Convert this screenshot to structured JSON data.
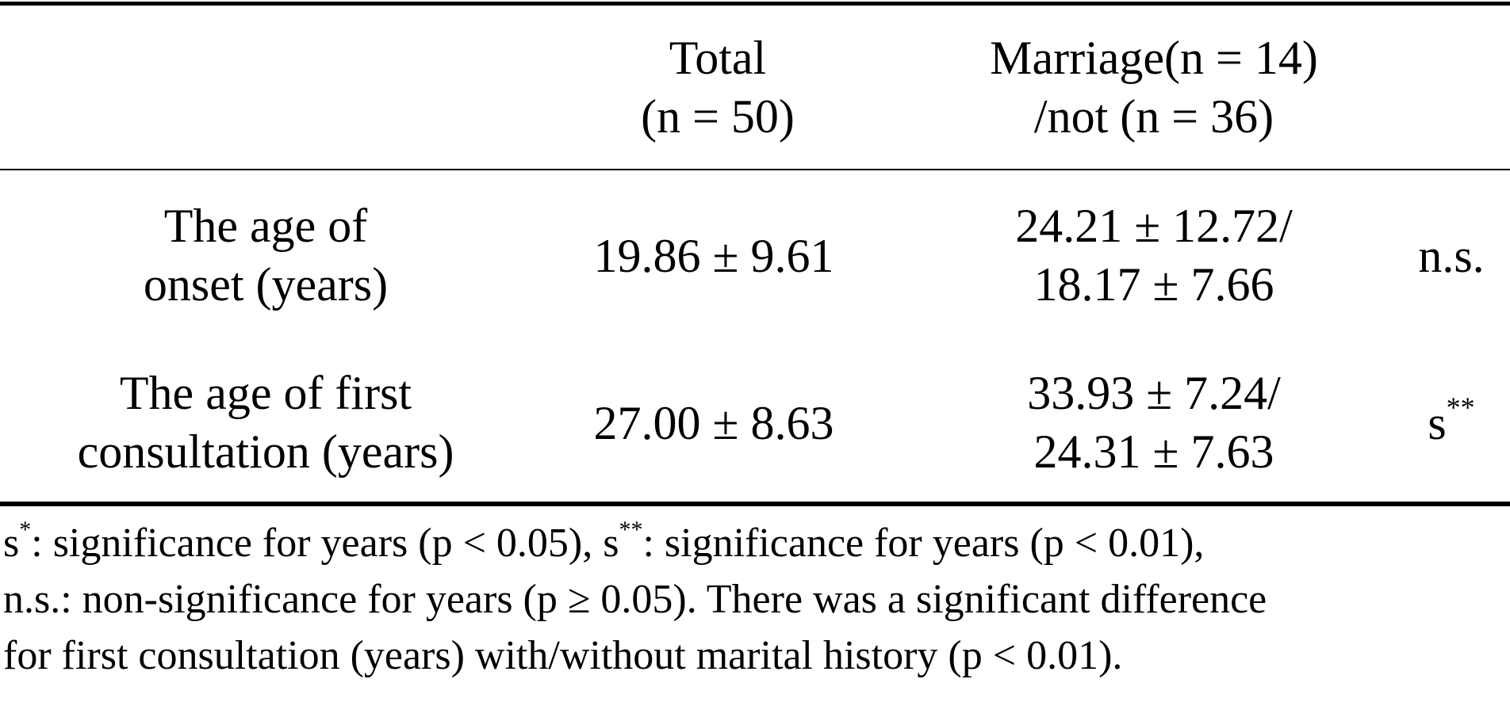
{
  "table": {
    "headers": {
      "total_line1": "Total",
      "total_line2": "(n = 50)",
      "marriage_line1": "Marriage(n = 14)",
      "marriage_line2": "/not (n = 36)"
    },
    "rows": [
      {
        "label_line1": "The age of",
        "label_line2": "onset (years)",
        "total": "19.86 ± 9.61",
        "marriage_line1": "24.21 ± 12.72/",
        "marriage_line2": "18.17 ± 7.66",
        "significance": "n.s.",
        "significance_sup": ""
      },
      {
        "label_line1": "The age of first",
        "label_line2": "consultation (years)",
        "total": "27.00 ± 8.63",
        "marriage_line1": "33.93 ± 7.24/",
        "marriage_line2": "24.31 ± 7.63",
        "significance": "s",
        "significance_sup": "**"
      }
    ]
  },
  "footnote": {
    "line1_a": "s",
    "line1_a_sup": "*",
    "line1_b": ": significance for years (p < 0.05), s",
    "line1_b_sup": "**",
    "line1_c": ": significance for years (p < 0.01),",
    "line2": "n.s.: non-significance for years (p ≥ 0.05). There was a significant difference",
    "line3": "for first consultation (years) with/without marital history (p < 0.01)."
  }
}
